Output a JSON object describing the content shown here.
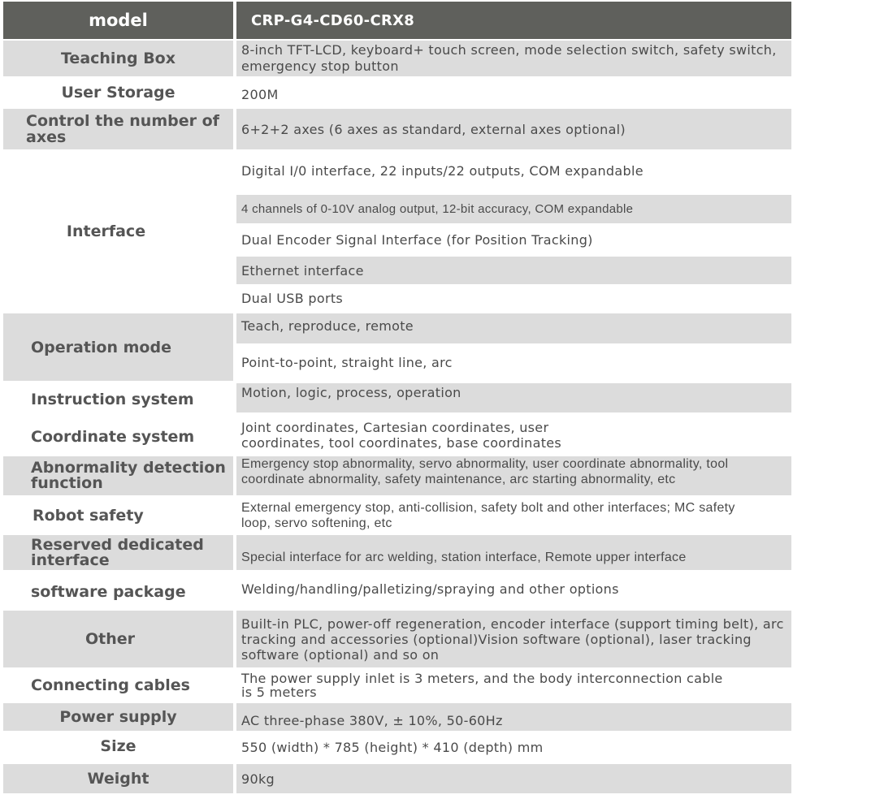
{
  "header": {
    "label": "model",
    "value": "CRP-G4-CD60-CRX8"
  },
  "rows": [
    {
      "label": "Teaching Box",
      "value": "8-inch TFT-LCD, keyboard+ touch screen, mode selection switch, safety switch, emergency stop button"
    },
    {
      "label": "User Storage",
      "value": "200M"
    },
    {
      "label": "Control the number of axes",
      "value": "6+2+2 axes (6 axes as standard, external axes optional)"
    },
    {
      "label": "Interface",
      "values": [
        "Digital I/0 interface, 22 inputs/22 outputs, COM expandable",
        "4 channels of 0-10V analog output, 12-bit accuracy, COM expandable",
        "Dual Encoder Signal Interface (for Position Tracking)",
        "Ethernet interface",
        "Dual USB ports"
      ]
    },
    {
      "label": "Operation mode",
      "values": [
        "Teach, reproduce, remote",
        "Point-to-point, straight line, arc"
      ]
    },
    {
      "label": "Instruction system",
      "value": "Motion, logic, process, operation"
    },
    {
      "label": "Coordinate system",
      "value": "Joint coordinates, Cartesian coordinates, user coordinates, tool coordinates, base coordinates"
    },
    {
      "label": "Abnormality detection function",
      "value": "Emergency stop abnormality, servo abnormality, user coordinate abnormality, tool coordinate abnormality, safety maintenance, arc starting abnormality, etc"
    },
    {
      "label": "Robot safety",
      "value": "External emergency stop, anti-collision, safety bolt and other interfaces; MC safety loop, servo softening, etc"
    },
    {
      "label": "Reserved dedicated interface",
      "value": "Special interface for arc welding, station interface, Remote upper interface"
    },
    {
      "label": "software package",
      "value": "Welding/handling/palletizing/spraying and other options"
    },
    {
      "label": "Other",
      "value": "Built-in PLC, power-off regeneration, encoder interface (support timing belt), arc tracking and accessories (optional)Vision software (optional), laser tracking software (optional) and so on"
    },
    {
      "label": "Connecting cables",
      "value": "The power supply inlet is 3 meters, and the body interconnection cable is 5 meters"
    },
    {
      "label": "Power supply",
      "value": "AC three-phase 380V, ± 10%, 50-60Hz"
    },
    {
      "label": "Size",
      "value": "550 (width) * 785 (height) * 410 (depth) mm"
    },
    {
      "label": "Weight",
      "value": "90kg"
    }
  ]
}
